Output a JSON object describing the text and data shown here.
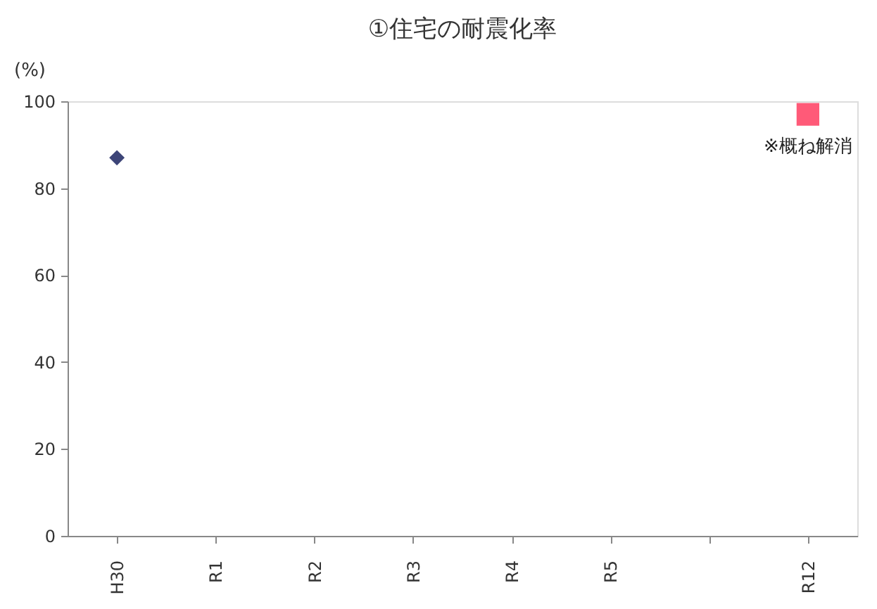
{
  "chart_data": {
    "type": "scatter",
    "title": "①住宅の耐震化率",
    "ylabel": "(%)",
    "categories": [
      "H30",
      "R1",
      "R2",
      "R3",
      "R4",
      "R5",
      null,
      "R12"
    ],
    "series": [
      {
        "color": "#3d4578",
        "marker": "diamond",
        "values": [
          87,
          null,
          null,
          null,
          null,
          null,
          null,
          null
        ]
      },
      {
        "color": "#ff5a78",
        "marker": "square",
        "values": [
          null,
          null,
          null,
          null,
          null,
          null,
          null,
          97
        ]
      }
    ],
    "annotations": [
      "※概ね解消"
    ],
    "ylim": [
      0,
      100
    ],
    "yticks": [
      0,
      20,
      40,
      60,
      80,
      100
    ],
    "grid": false
  }
}
